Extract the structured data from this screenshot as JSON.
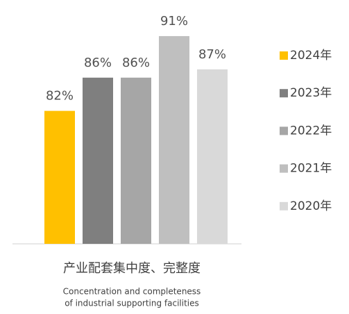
{
  "chart_data": {
    "type": "bar",
    "categories": [
      "产业配套集中度、完整度"
    ],
    "category_note": [
      "Concentration and completeness",
      "of industrial supporting facilities"
    ],
    "series": [
      {
        "name": "2024年",
        "color": "#FFC000",
        "values": [
          82
        ],
        "value_labels": [
          "82%"
        ]
      },
      {
        "name": "2023年",
        "color": "#7F7F7F",
        "values": [
          86
        ],
        "value_labels": [
          "86%"
        ]
      },
      {
        "name": "2022年",
        "color": "#A6A6A6",
        "values": [
          86
        ],
        "value_labels": [
          "86%"
        ]
      },
      {
        "name": "2021年",
        "color": "#BFBFBF",
        "values": [
          91
        ],
        "value_labels": [
          "91%"
        ]
      },
      {
        "name": "2020年",
        "color": "#D9D9D9",
        "values": [
          87
        ],
        "value_labels": [
          "87%"
        ]
      }
    ],
    "ylim": [
      66,
      92
    ],
    "legend": "right"
  }
}
